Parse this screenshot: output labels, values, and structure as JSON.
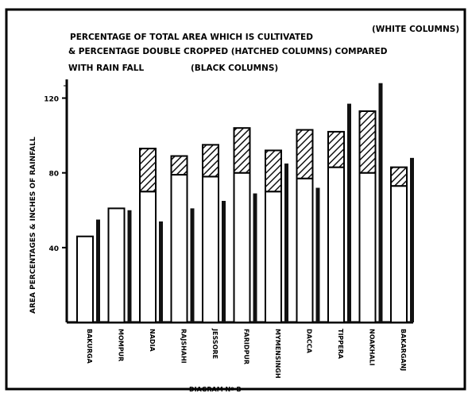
{
  "chart_data": {
    "type": "bar",
    "title_lines": [
      "PERCENTAGE OF TOTAL AREA WHICH IS CULTIVATED",
      "(WHITE COLUMNS)",
      "& PERCENTAGE DOUBLE CROPPED (HATCHED COLUMNS) COMPARED",
      "WITH RAIN FALL",
      "(BLACK COLUMNS)"
    ],
    "ylabel": "AREA PERCENTAGES & INCHES OF RAINFALL",
    "footer": "DIAGRAM Nº B",
    "ylim": [
      0,
      130
    ],
    "yticks": [
      40,
      80,
      120
    ],
    "categories": [
      "BAKURGA",
      "MOMPUR",
      "NADIA",
      "RAJSHAHI",
      "JESSORE",
      "FARIDPUR",
      "MYMENSINGH",
      "DACCA",
      "TIPPERA",
      "NOAKHALI",
      "BAKARGANJ"
    ],
    "category_notes": [
      "",
      "",
      "",
      "",
      "",
      "",
      "",
      "",
      "",
      "",
      ""
    ],
    "series": [
      {
        "name": "WHITE COLUMNS",
        "values": [
          46,
          61,
          70,
          79,
          78,
          80,
          70,
          77,
          83,
          80,
          73
        ],
        "color": "#ffffff"
      },
      {
        "name": "HATCHED COLUMNS",
        "values": [
          0,
          0,
          23,
          10,
          17,
          24,
          22,
          26,
          19,
          33,
          10
        ],
        "color": "#555555"
      },
      {
        "name": "BLACK COLUMNS",
        "values": [
          55,
          60,
          54,
          61,
          65,
          69,
          85,
          72,
          117,
          128,
          88
        ],
        "color": "#111111"
      }
    ]
  }
}
